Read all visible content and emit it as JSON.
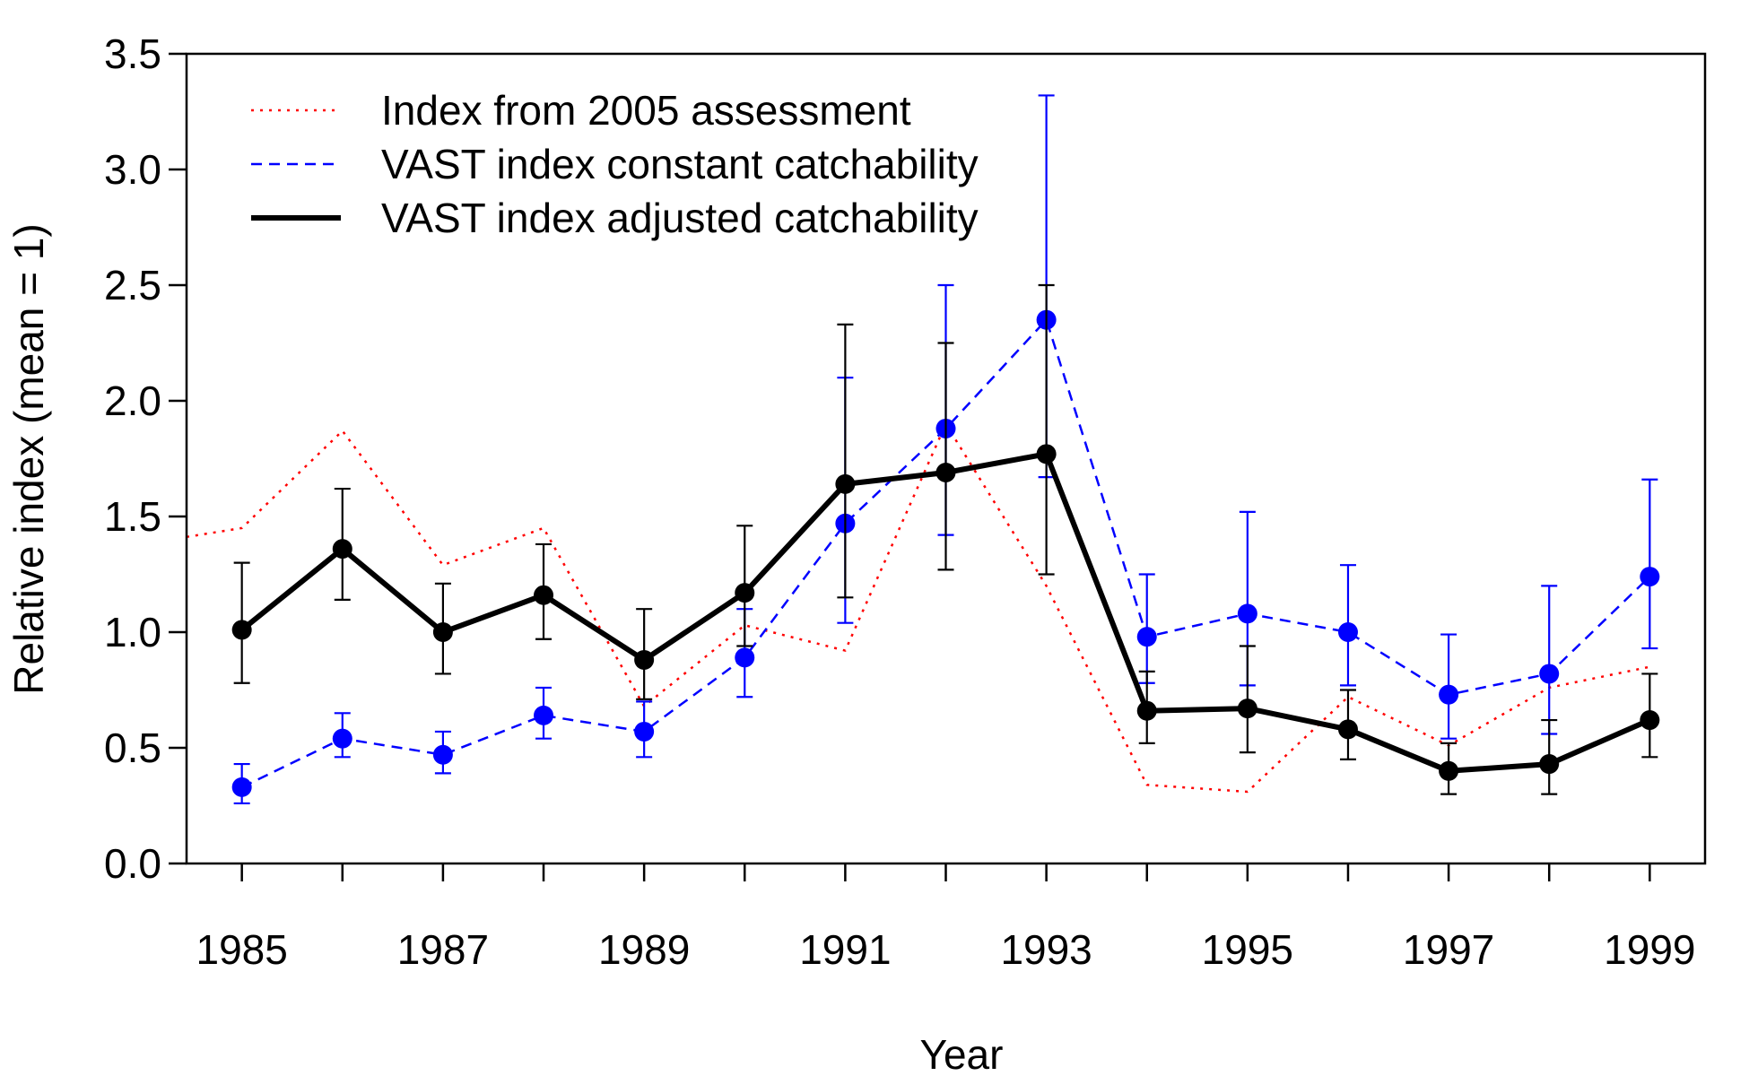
{
  "chart_data": {
    "type": "line",
    "title": "",
    "xlabel": "Year",
    "ylabel": "Relative index (mean = 1)",
    "xlim": [
      1984.45,
      1999.55
    ],
    "ylim": [
      0,
      3.5
    ],
    "x_ticks": [
      1985,
      1986,
      1987,
      1988,
      1989,
      1990,
      1991,
      1992,
      1993,
      1994,
      1995,
      1996,
      1997,
      1998,
      1999
    ],
    "x_tick_labels": [
      "1985",
      "1987",
      "1989",
      "1991",
      "1993",
      "1995",
      "1997",
      "1999"
    ],
    "y_ticks": [
      0.0,
      0.5,
      1.0,
      1.5,
      2.0,
      2.5,
      3.0,
      3.5
    ],
    "y_tick_labels": [
      "0.0",
      "0.5",
      "1.0",
      "1.5",
      "2.0",
      "2.5",
      "3.0",
      "3.5"
    ],
    "grid": false,
    "legend_position": "top-left",
    "series": [
      {
        "name": "Index from 2005 assessment",
        "color": "#ff0000",
        "style": "dotted",
        "markers": false,
        "x": [
          1984,
          1985,
          1986,
          1987,
          1988,
          1989,
          1990,
          1991,
          1992,
          1993,
          1994,
          1995,
          1996,
          1997,
          1998,
          1999
        ],
        "values": [
          1.38,
          1.45,
          1.87,
          1.29,
          1.45,
          0.68,
          1.03,
          0.92,
          1.9,
          1.2,
          0.34,
          0.31,
          0.72,
          0.51,
          0.76,
          0.85
        ]
      },
      {
        "name": "VAST index constant catchability",
        "color": "#0000ff",
        "style": "dashed",
        "markers": true,
        "x": [
          1985,
          1986,
          1987,
          1988,
          1989,
          1990,
          1991,
          1992,
          1993,
          1994,
          1995,
          1996,
          1997,
          1998,
          1999
        ],
        "values": [
          0.33,
          0.54,
          0.47,
          0.64,
          0.57,
          0.89,
          1.47,
          1.88,
          2.35,
          0.98,
          1.08,
          1.0,
          0.73,
          0.82,
          1.24
        ],
        "lower": [
          0.26,
          0.46,
          0.39,
          0.54,
          0.46,
          0.72,
          1.04,
          1.42,
          1.67,
          0.78,
          0.77,
          0.77,
          0.54,
          0.56,
          0.93
        ],
        "upper": [
          0.43,
          0.65,
          0.57,
          0.76,
          0.7,
          1.1,
          2.1,
          2.5,
          3.32,
          1.25,
          1.52,
          1.29,
          0.99,
          1.2,
          1.66
        ]
      },
      {
        "name": "VAST index adjusted catchability",
        "color": "#000000",
        "style": "solid",
        "markers": true,
        "x": [
          1985,
          1986,
          1987,
          1988,
          1989,
          1990,
          1991,
          1992,
          1993,
          1994,
          1995,
          1996,
          1997,
          1998,
          1999
        ],
        "values": [
          1.01,
          1.36,
          1.0,
          1.16,
          0.88,
          1.17,
          1.64,
          1.69,
          1.77,
          0.66,
          0.67,
          0.58,
          0.4,
          0.43,
          0.62
        ],
        "lower": [
          0.78,
          1.14,
          0.82,
          0.97,
          0.71,
          0.94,
          1.15,
          1.27,
          1.25,
          0.52,
          0.48,
          0.45,
          0.3,
          0.3,
          0.46
        ],
        "upper": [
          1.3,
          1.62,
          1.21,
          1.38,
          1.1,
          1.46,
          2.33,
          2.25,
          2.5,
          0.83,
          0.94,
          0.75,
          0.52,
          0.62,
          0.82
        ]
      }
    ]
  }
}
